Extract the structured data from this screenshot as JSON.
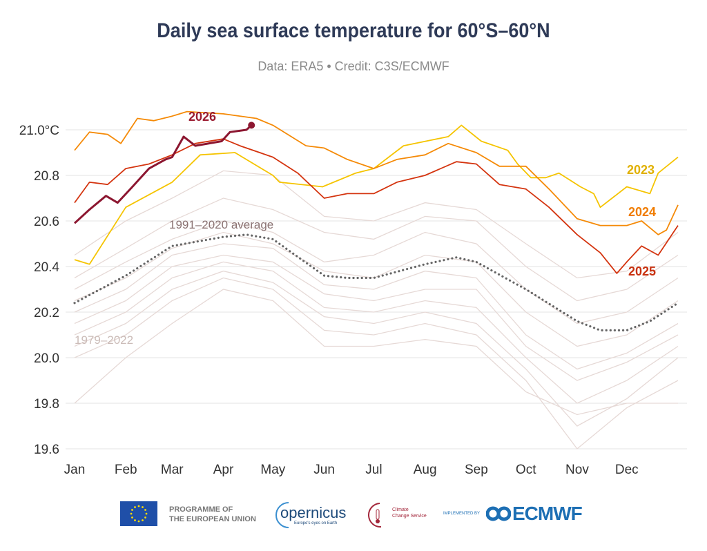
{
  "chart_data": {
    "type": "line",
    "title": "Daily sea surface temperature for 60°S–60°N",
    "subtitle": "Data: ERA5 • Credit: C3S/ECMWF",
    "xlabel": "",
    "ylabel": "",
    "x_unit": "day of year",
    "xlim": [
      0,
      365
    ],
    "ylim": [
      19.6,
      21.1
    ],
    "grid": "horizontal",
    "y_ticks": [
      19.6,
      19.8,
      20.0,
      20.2,
      20.4,
      20.6,
      20.8,
      21.0
    ],
    "y_tick_labels": [
      "19.6",
      "19.8",
      "20.0",
      "20.2",
      "20.4",
      "20.6",
      "20.8",
      "21.0°C"
    ],
    "x_ticks": [
      0,
      31,
      59,
      90,
      120,
      151,
      181,
      212,
      243,
      273,
      304,
      334
    ],
    "x_tick_labels": [
      "Jan",
      "Feb",
      "Mar",
      "Apr",
      "May",
      "Jun",
      "Jul",
      "Aug",
      "Sep",
      "Oct",
      "Nov",
      "Dec"
    ],
    "background_group": {
      "label": "1979–2022",
      "color": "#e6d9d6",
      "x": [
        0,
        31,
        59,
        90,
        120,
        151,
        181,
        212,
        243,
        273,
        304,
        334,
        365
      ],
      "series": [
        [
          20.45,
          20.6,
          20.7,
          20.82,
          20.8,
          20.62,
          20.6,
          20.68,
          20.65,
          20.5,
          20.35,
          20.38,
          20.55
        ],
        [
          20.35,
          20.48,
          20.6,
          20.7,
          20.65,
          20.55,
          20.52,
          20.62,
          20.6,
          20.4,
          20.25,
          20.3,
          20.45
        ],
        [
          20.3,
          20.42,
          20.52,
          20.6,
          20.55,
          20.42,
          20.45,
          20.55,
          20.5,
          20.3,
          20.15,
          20.2,
          20.35
        ],
        [
          20.25,
          20.35,
          20.48,
          20.55,
          20.5,
          20.38,
          20.35,
          20.45,
          20.42,
          20.2,
          20.05,
          20.1,
          20.25
        ],
        [
          20.2,
          20.3,
          20.45,
          20.5,
          20.48,
          20.32,
          20.3,
          20.38,
          20.35,
          20.1,
          19.95,
          20.02,
          20.15
        ],
        [
          20.15,
          20.25,
          20.4,
          20.45,
          20.42,
          20.28,
          20.25,
          20.3,
          20.3,
          20.05,
          19.9,
          19.98,
          20.1
        ],
        [
          20.1,
          20.2,
          20.35,
          20.42,
          20.38,
          20.22,
          20.2,
          20.25,
          20.22,
          20.0,
          19.8,
          19.9,
          20.05
        ],
        [
          20.05,
          20.15,
          20.3,
          20.38,
          20.33,
          20.18,
          20.15,
          20.2,
          20.15,
          19.95,
          19.7,
          19.82,
          20.0
        ],
        [
          20.0,
          20.1,
          20.25,
          20.35,
          20.3,
          20.12,
          20.1,
          20.15,
          20.1,
          19.9,
          19.6,
          19.78,
          19.9
        ],
        [
          19.8,
          20.0,
          20.15,
          20.3,
          20.25,
          20.05,
          20.05,
          20.08,
          20.05,
          19.85,
          19.75,
          19.8,
          19.8
        ]
      ]
    },
    "average": {
      "label": "1991–2020 average",
      "color": "#666666",
      "x": [
        0,
        31,
        59,
        90,
        104,
        120,
        151,
        165,
        181,
        212,
        231,
        243,
        273,
        304,
        318,
        334,
        348,
        365
      ],
      "y": [
        20.24,
        20.36,
        20.49,
        20.53,
        20.54,
        20.52,
        20.36,
        20.35,
        20.35,
        20.41,
        20.44,
        20.42,
        20.3,
        20.16,
        20.12,
        20.12,
        20.16,
        20.24
      ]
    },
    "series": [
      {
        "name": "2023",
        "color": "#f5c400",
        "label_color": "#e0b000",
        "x": [
          0,
          9,
          31,
          59,
          76,
          97,
          120,
          124,
          150,
          170,
          181,
          199,
          226,
          234,
          246,
          262,
          268,
          276,
          285,
          293,
          306,
          314,
          318,
          334,
          348,
          353,
          365
        ],
        "y": [
          20.43,
          20.41,
          20.66,
          20.77,
          20.89,
          20.9,
          20.8,
          20.77,
          20.75,
          20.81,
          20.83,
          20.93,
          20.97,
          21.02,
          20.95,
          20.91,
          20.85,
          20.79,
          20.79,
          20.81,
          20.75,
          20.72,
          20.66,
          20.75,
          20.72,
          20.81,
          20.88
        ]
      },
      {
        "name": "2024",
        "color": "#f58a07",
        "label_color": "#f07c00",
        "x": [
          0,
          9,
          20,
          28,
          38,
          48,
          59,
          68,
          90,
          110,
          120,
          140,
          151,
          165,
          181,
          195,
          212,
          226,
          243,
          257,
          273,
          287,
          304,
          318,
          334,
          343,
          353,
          358,
          365
        ],
        "y": [
          20.91,
          20.99,
          20.98,
          20.94,
          21.05,
          21.04,
          21.06,
          21.08,
          21.07,
          21.05,
          21.02,
          20.93,
          20.92,
          20.87,
          20.83,
          20.87,
          20.89,
          20.94,
          20.9,
          20.84,
          20.84,
          20.74,
          20.61,
          20.58,
          20.58,
          20.6,
          20.54,
          20.56,
          20.67
        ]
      },
      {
        "name": "2025",
        "color": "#d4340f",
        "label_color": "#c8300e",
        "x": [
          0,
          9,
          20,
          31,
          45,
          59,
          73,
          90,
          100,
          120,
          135,
          151,
          165,
          181,
          195,
          212,
          231,
          243,
          257,
          273,
          287,
          304,
          318,
          328,
          334,
          343,
          353,
          365
        ],
        "y": [
          20.68,
          20.77,
          20.76,
          20.83,
          20.85,
          20.89,
          20.94,
          20.96,
          20.93,
          20.88,
          20.81,
          20.7,
          20.72,
          20.72,
          20.77,
          20.8,
          20.86,
          20.85,
          20.76,
          20.74,
          20.66,
          20.54,
          20.46,
          20.37,
          20.42,
          20.49,
          20.45,
          20.58
        ]
      },
      {
        "name": "2026",
        "color": "#8c1630",
        "label_color": "#9b1b30",
        "x": [
          0,
          9,
          19,
          26,
          35,
          45,
          55,
          59,
          66,
          73,
          89,
          94,
          104,
          107
        ],
        "y": [
          20.59,
          20.65,
          20.71,
          20.68,
          20.75,
          20.83,
          20.87,
          20.88,
          20.97,
          20.93,
          20.95,
          20.99,
          21.0,
          21.02
        ]
      }
    ]
  },
  "footer": {
    "eu_text_line1": "PROGRAMME OF",
    "eu_text_line2": "THE EUROPEAN UNION",
    "copernicus": "opernicus",
    "copernicus_tagline": "Europe's eyes on Earth",
    "c3s_line1": "Climate",
    "c3s_line2": "Change Service",
    "implemented_by": "IMPLEMENTED BY",
    "ecmwf": "ECMWF"
  }
}
